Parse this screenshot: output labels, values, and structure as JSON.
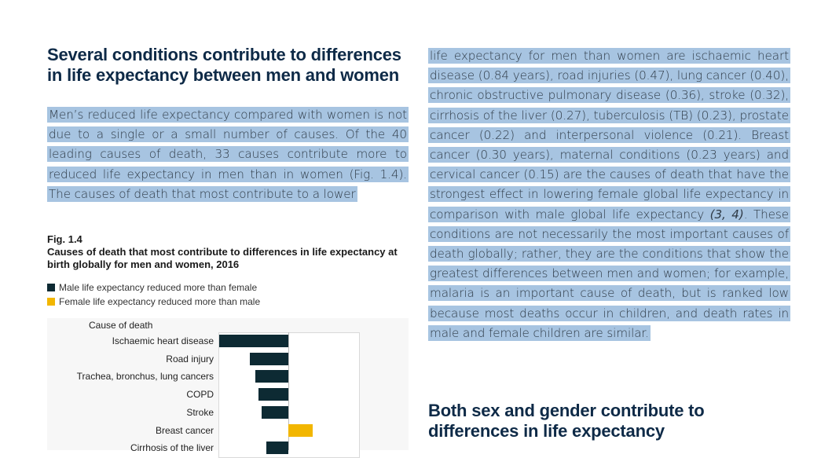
{
  "left_column": {
    "heading": "Several conditions contribute to differences in life expectancy between men and women",
    "paragraph": "Men’s reduced life expectancy compared with women is not due to a single or a small number of causes. Of the 40 leading causes of death, 33 causes contribute more to reduced life expectancy in men than in women (Fig. 1.4). The causes of death that most contribute to a lower",
    "figure": {
      "label": "Fig. 1.4",
      "title": "Causes of death that most contribute to differences in life expectancy at birth globally for men and women, 2016",
      "legend": [
        {
          "label": "Male life expectancy reduced more than female",
          "color": "#0d2a33"
        },
        {
          "label": "Female life expectancy reduced more than male",
          "color": "#f2b600"
        }
      ],
      "axis_title": "Cause of death"
    }
  },
  "right_column": {
    "paragraph_part1": "life expectancy for men than women are ischaemic heart disease (0.84 years), road injuries (0.47), lung cancer (0.40), chronic obstructive pulmonary disease (0.36), stroke (0.32), cirrhosis of the liver (0.27), tuberculosis (TB) (0.23), prostate cancer (0.22) and interpersonal violence (0.21). Breast cancer (0.30 years), maternal conditions (0.23 years) and cervical cancer (0.15) are the causes of death that have the strongest effect in lowering female global life expectancy in comparison with male global life expectancy ",
    "citation": "(3, 4)",
    "paragraph_part2": ". These conditions are not necessarily the most important causes of death globally; rather, they are the conditions that show the greatest differences between men and women; for example, malaria is an important cause of death, but is ranked low because most deaths occur in children, and death rates in male and female children are similar.",
    "heading": "Both sex and gender contribute to differences in life expectancy"
  },
  "chart_data": {
    "type": "bar",
    "orientation": "horizontal",
    "categories": [
      "Ischaemic heart disease",
      "Road injury",
      "Trachea, bronchus, lung cancers",
      "COPD",
      "Stroke",
      "Breast cancer",
      "Cirrhosis of the liver"
    ],
    "series": [
      {
        "name": "Male life expectancy reduced more than female",
        "color": "#0d2a33",
        "values": [
          0.84,
          0.47,
          0.4,
          0.36,
          0.32,
          null,
          0.27
        ]
      },
      {
        "name": "Female life expectancy reduced more than male",
        "color": "#f2b600",
        "values": [
          null,
          null,
          null,
          null,
          null,
          0.3,
          null
        ]
      }
    ],
    "xlabel": "",
    "ylabel": "Cause of death",
    "xlim": [
      -0.84,
      0.84
    ]
  }
}
